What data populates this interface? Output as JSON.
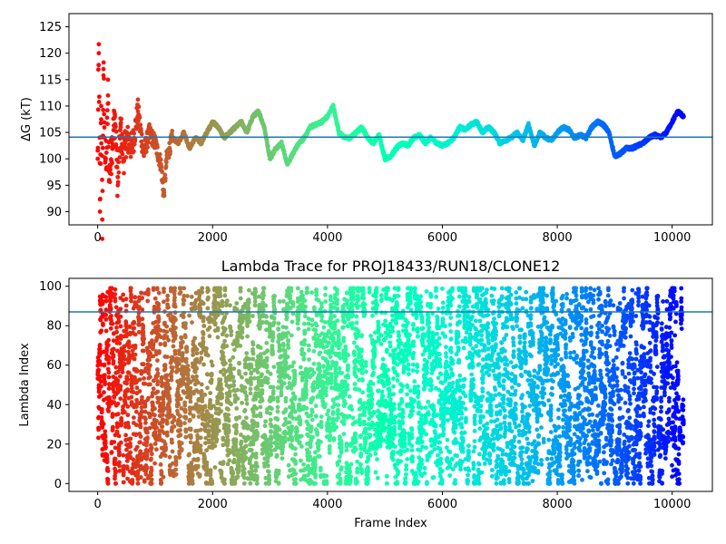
{
  "chart_data": [
    {
      "type": "scatter",
      "title": "",
      "xlabel": "",
      "ylabel": "ΔG (kT)",
      "xlim": [
        -500,
        10700
      ],
      "ylim": [
        87.5,
        127.5
      ],
      "xticks": [
        0,
        2000,
        4000,
        6000,
        8000,
        10000
      ],
      "yticks": [
        90,
        95,
        100,
        105,
        110,
        115,
        120,
        125
      ],
      "hline": 104.1,
      "hline_color": "#1f77b4",
      "colormap": "rainbow",
      "series": [
        {
          "x": [
            0,
            20,
            40,
            60,
            80,
            100,
            120,
            150,
            180,
            200,
            250,
            300,
            350,
            400,
            450,
            500,
            600,
            700,
            800,
            900,
            1000,
            1100,
            1150,
            1200,
            1300,
            1400,
            1500,
            1600,
            1700,
            1800,
            1900,
            2000,
            2100,
            2200,
            2300,
            2400,
            2500,
            2600,
            2700,
            2800,
            2900,
            3000,
            3100,
            3200,
            3300,
            3400,
            3500,
            3600,
            3700,
            3800,
            3900,
            4000,
            4100,
            4200,
            4300,
            4400,
            4500,
            4600,
            4700,
            4800,
            4900,
            5000,
            5100,
            5200,
            5300,
            5400,
            5500,
            5600,
            5700,
            5800,
            5900,
            6000,
            6100,
            6200,
            6300,
            6400,
            6500,
            6600,
            6700,
            6800,
            6900,
            7000,
            7100,
            7200,
            7300,
            7400,
            7500,
            7600,
            7700,
            7800,
            7900,
            8000,
            8100,
            8200,
            8300,
            8400,
            8500,
            8600,
            8700,
            8800,
            8900,
            9000,
            9100,
            9200,
            9300,
            9400,
            9500,
            9600,
            9700,
            9800,
            9900,
            10000,
            10100,
            10200
          ],
          "y": [
            100,
            120,
            90,
            110,
            88.5,
            117,
            104,
            98,
            112,
            96,
            103,
            108,
            95,
            106,
            100,
            104,
            102,
            109,
            101,
            105,
            103,
            99,
            93,
            100,
            104,
            103,
            105,
            102,
            104,
            103,
            105,
            107,
            106,
            104,
            105,
            106,
            107,
            105,
            108,
            109,
            106,
            100,
            102,
            103,
            99,
            101,
            103,
            104,
            106,
            106.5,
            107,
            108,
            110,
            105,
            104,
            104,
            105,
            106,
            104,
            103,
            104.5,
            100,
            100.5,
            102,
            103,
            102.5,
            104,
            104.5,
            103,
            104,
            103,
            102.5,
            103,
            104,
            106,
            105.5,
            106.5,
            107,
            105,
            106,
            105,
            103,
            103.5,
            104,
            105,
            103.5,
            106.5,
            102.5,
            105,
            104,
            103.5,
            105,
            106,
            105.5,
            104,
            104.5,
            104,
            106,
            107,
            106.5,
            105,
            100.5,
            101,
            102,
            102,
            102.5,
            103,
            104,
            104.5,
            104,
            105,
            107,
            109,
            108
          ]
        }
      ]
    },
    {
      "type": "scatter",
      "title": "Lambda Trace for PROJ18433/RUN18/CLONE12",
      "xlabel": "Frame Index",
      "ylabel": "Lambda Index",
      "xlim": [
        -500,
        10700
      ],
      "ylim": [
        -4,
        104
      ],
      "xticks": [
        0,
        2000,
        4000,
        6000,
        8000,
        10000
      ],
      "yticks": [
        0,
        20,
        40,
        60,
        80,
        100
      ],
      "hline": 87,
      "hline_color": "#1f77b4",
      "colormap": "rainbow",
      "point_count": 8000,
      "point_count_range": [
        0,
        10200
      ],
      "lambda_range": [
        0,
        99
      ]
    }
  ]
}
